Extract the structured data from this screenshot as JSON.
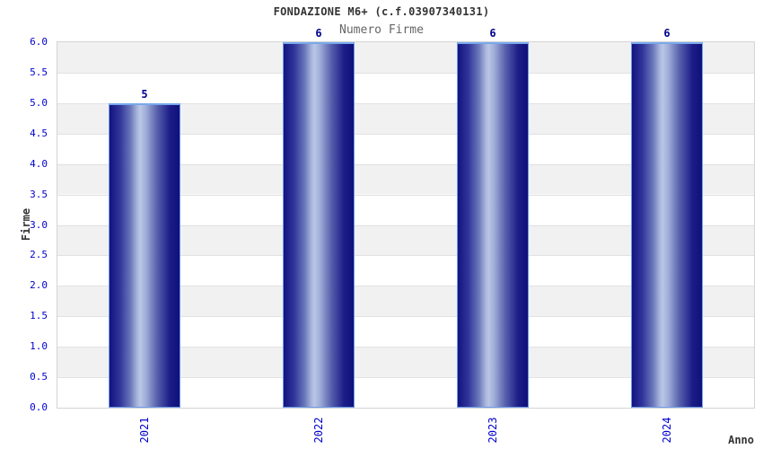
{
  "chart_data": {
    "type": "bar",
    "title": "FONDAZIONE M6+ (c.f.03907340131)",
    "subtitle": "Numero Firme",
    "xlabel": "Anno",
    "ylabel": "Firme",
    "categories": [
      "2021",
      "2022",
      "2023",
      "2024"
    ],
    "values": [
      5,
      6,
      6,
      6
    ],
    "ylim": [
      0,
      6
    ],
    "ytick_step": 0.5,
    "yticks": [
      "0.0",
      "0.5",
      "1.0",
      "1.5",
      "2.0",
      "2.5",
      "3.0",
      "3.5",
      "4.0",
      "4.5",
      "5.0",
      "5.5",
      "6.0"
    ],
    "grid": "horizontal-bands",
    "legend_position": "none"
  },
  "colors": {
    "tick_label_blue": "#0000cd",
    "value_label_navy": "#00008b",
    "title_text": "#333333",
    "subtitle_text": "#666666",
    "bar_edge_dark": "#131380",
    "bar_center_light": "#bac6e6",
    "bar_border_light_blue": "#6f9ae8",
    "band_gray": "#f1f1f1",
    "band_white": "#ffffff",
    "plot_border": "#d4d4d4"
  }
}
